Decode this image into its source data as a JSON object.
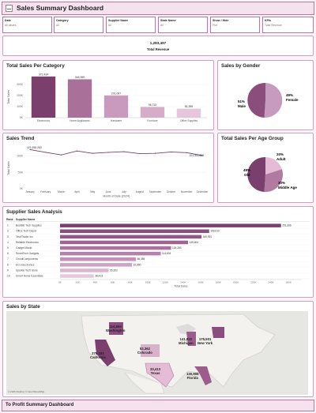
{
  "header": {
    "title": "Sales Summary Dashboard"
  },
  "filters": [
    {
      "label": "Date",
      "value": "All values"
    },
    {
      "label": "Category",
      "value": "All"
    },
    {
      "label": "Supplier Name",
      "value": "All"
    },
    {
      "label": "State Name",
      "value": "All"
    },
    {
      "label": "Show / Hide",
      "value": "Plot"
    },
    {
      "label": "KPIs",
      "value": "Total Revenue"
    }
  ],
  "kpi": {
    "value": "1,283,497",
    "label": "Total Revenue"
  },
  "category": {
    "title": "Total Sales  Per Category"
  },
  "gender": {
    "title": "Sales by Gender"
  },
  "trend": {
    "title": "Sales Trend"
  },
  "age": {
    "title": "Total Sales Per Age Group"
  },
  "supplier": {
    "title": "Supplier Sales Analysis"
  },
  "state": {
    "title": "Sales by State",
    "attribution": "© 2026 Mapbox © OpenStreetMap"
  },
  "footer": {
    "label": "To Profit Summary Dashboard"
  },
  "colors": {
    "dark": "#7b3f6e",
    "mid": "#b07aa1",
    "light": "#e4bcd6",
    "border": "#b07aa1"
  },
  "chart_data": [
    {
      "type": "bar",
      "title": "Total Sales  Per Category",
      "ylabel": "Total Sales",
      "categories": [
        "Electronics",
        "Home Appliances",
        "Hardware",
        "Furniture",
        "Office Supplies"
      ],
      "values": [
        372434,
        346959,
        201087,
        96715,
        81395
      ],
      "labels": [
        "372,434",
        "346,959",
        "201,087",
        "96,715",
        "81,395"
      ],
      "yticks": [
        "0K",
        "100K",
        "200K",
        "300K"
      ],
      "ylim": [
        0,
        400000
      ]
    },
    {
      "type": "pie",
      "title": "Sales by Gender",
      "slices": [
        {
          "name": "Female",
          "pct": 49,
          "label": "49%"
        },
        {
          "name": "Male",
          "pct": 51,
          "label": "51%"
        }
      ]
    },
    {
      "type": "line",
      "title": "Sales Trend",
      "xlabel": "Month of Date [2024]",
      "ylabel": "Total Sales",
      "categories": [
        "January",
        "February",
        "March",
        "April",
        "May",
        "June",
        "July",
        "August",
        "September",
        "October",
        "November",
        "December"
      ],
      "values": [
        119298,
        111000,
        103000,
        115000,
        108000,
        111000,
        113000,
        107000,
        108000,
        112000,
        110000,
        101312
      ],
      "first_label": "119,298,263",
      "last_label": "101,311,865",
      "yticks": [
        "0K",
        "50K",
        "100K"
      ],
      "ylim": [
        0,
        130000
      ]
    },
    {
      "type": "pie",
      "title": "Total Sales Per Age Group",
      "slices": [
        {
          "name": "Adult",
          "pct": 20,
          "label": "20%"
        },
        {
          "name": "Middle Age",
          "pct": 30,
          "label": "30%"
        },
        {
          "name": "Old",
          "pct": 49,
          "label": "49%"
        }
      ]
    },
    {
      "type": "bar",
      "orientation": "horizontal",
      "title": "Supplier Sales Analysis",
      "xlabel": "Total Sales",
      "col_headers": [
        "Rank",
        "Supplier Name"
      ],
      "ranks": [
        "1",
        "2",
        "3",
        "4",
        "5",
        "6",
        "7",
        "8",
        "9",
        "10"
      ],
      "categories": [
        "BestBid Tech Supplies",
        "Office Tech Depot",
        "TechTrader Inc",
        "Reliable Electronics",
        "Gadget World",
        "SmartTech Gadgets",
        "CircuitComponents",
        "ECo Electronics",
        "Sparkle Tech Store",
        "Smart Home Essentials"
      ],
      "values": [
        251366,
        169610,
        160991,
        145604,
        126283,
        114604,
        86355,
        81950,
        55302,
        38413
      ],
      "labels": [
        "251,366",
        "169,610",
        "160,991",
        "145,604",
        "126,283",
        "114,604",
        "86,355",
        "81,950",
        "55,302",
        "38,413"
      ],
      "xticks": [
        "0K",
        "20K",
        "40K",
        "60K",
        "80K",
        "100K",
        "120K",
        "140K",
        "160K",
        "180K",
        "200K",
        "220K",
        "240K",
        "260K"
      ],
      "xlim": [
        0,
        275000
      ]
    }
  ],
  "state_labels": [
    {
      "name": "Washington",
      "value": "114,694"
    },
    {
      "name": "California",
      "value": "275,183"
    },
    {
      "name": "Colorado",
      "value": "53,362"
    },
    {
      "name": "Texas",
      "value": "33,413"
    },
    {
      "name": "Michigan",
      "value": "141,820"
    },
    {
      "name": "New York",
      "value": "175,501"
    },
    {
      "name": "Florida",
      "value": "130,908"
    }
  ]
}
